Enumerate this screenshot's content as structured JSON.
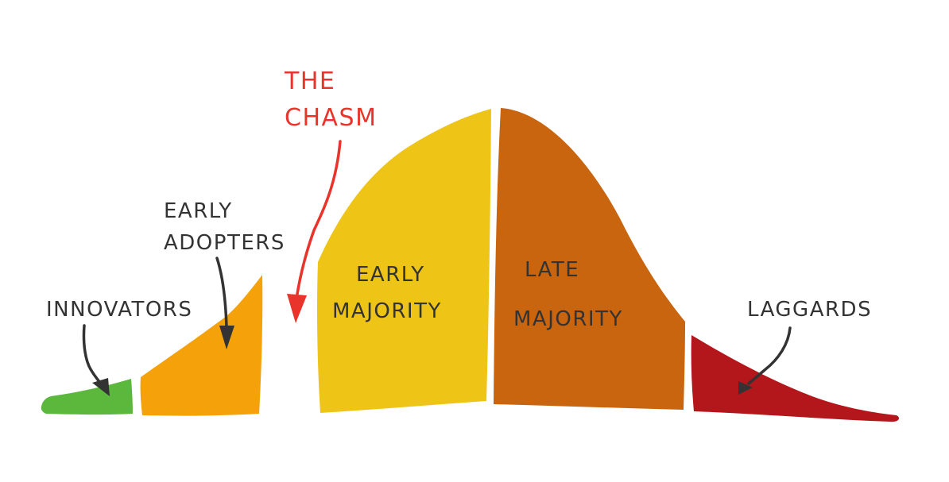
{
  "diagram": {
    "chasm_label": {
      "line1": "THE",
      "line2": "CHASM",
      "color": "#e8342a"
    },
    "segments": [
      {
        "id": "innovators",
        "label_lines": [
          "INNOVATORS"
        ],
        "color": "#5cb83c"
      },
      {
        "id": "early-adopters",
        "label_lines": [
          "EARLY",
          "ADOPTERS"
        ],
        "color": "#f5a10a"
      },
      {
        "id": "early-majority",
        "label_lines": [
          "EARLY",
          "MAJORITY"
        ],
        "color": "#eec417"
      },
      {
        "id": "late-majority",
        "label_lines": [
          "LATE",
          "MAJORITY"
        ],
        "color": "#c9640f"
      },
      {
        "id": "laggards",
        "label_lines": [
          "LAGGARDS"
        ],
        "color": "#b3161b"
      }
    ]
  }
}
